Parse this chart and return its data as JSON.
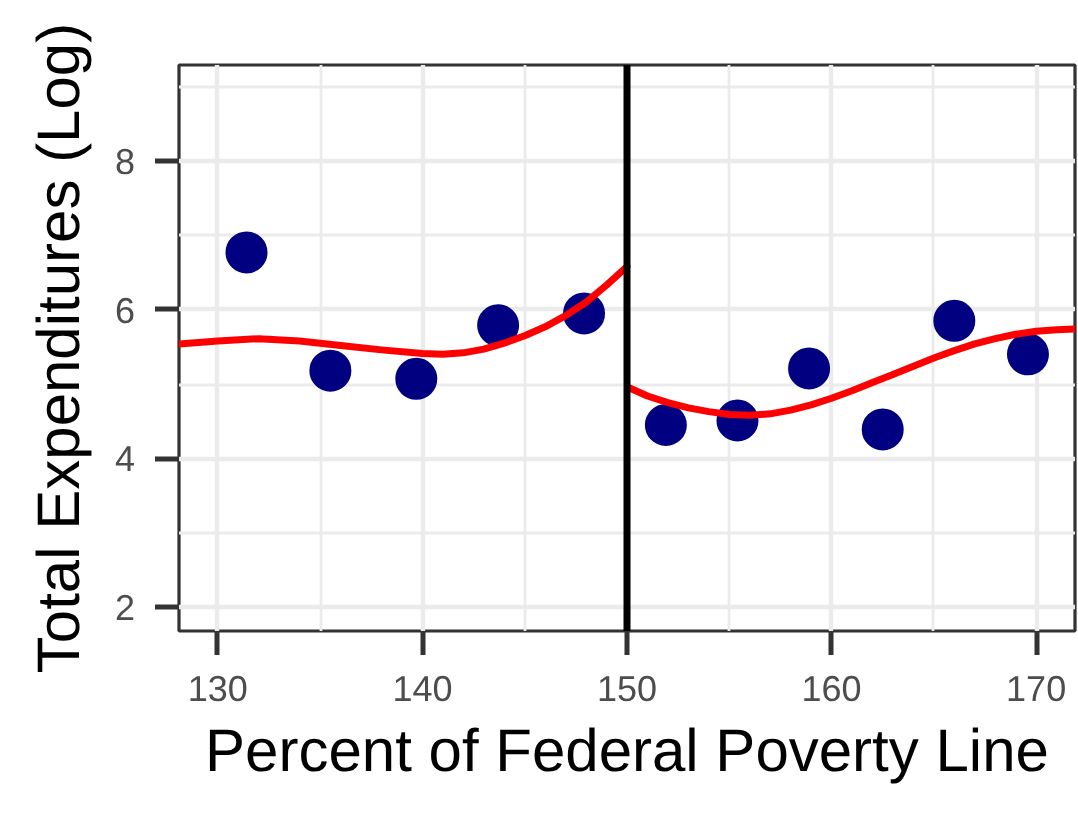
{
  "chart_data": {
    "type": "scatter",
    "xlabel": "Percent of Federal Poverty Line",
    "ylabel": "Total Expenditures (Log)",
    "xlim": [
      128.1,
      171.9
    ],
    "ylim": [
      1.68,
      9.29
    ],
    "xticks": [
      130,
      140,
      150,
      160,
      170
    ],
    "yticks": [
      2,
      4,
      6,
      8
    ],
    "grid": true,
    "series": [
      {
        "marker": "circle",
        "color": "#000080",
        "x": [
          131.4,
          135.5,
          139.7,
          143.7,
          147.9,
          151.9,
          155.4,
          158.9,
          162.5,
          166.0,
          169.6
        ],
        "values": [
          6.77,
          5.18,
          5.07,
          5.79,
          5.95,
          4.45,
          4.51,
          5.21,
          4.39,
          5.85,
          5.4
        ]
      },
      {
        "type": "line",
        "marker": "none",
        "line_style": "solid",
        "color": "#ff0000",
        "x": [
          128.1,
          130,
          132,
          134,
          136,
          138,
          140,
          141,
          142,
          143,
          144,
          145,
          146,
          147,
          148,
          149,
          150
        ],
        "values": [
          5.54,
          5.58,
          5.61,
          5.58,
          5.52,
          5.46,
          5.41,
          5.4,
          5.42,
          5.47,
          5.55,
          5.65,
          5.77,
          5.92,
          6.1,
          6.33,
          6.58
        ]
      },
      {
        "type": "line",
        "marker": "none",
        "line_style": "solid",
        "color": "#ff0000",
        "x": [
          150.1,
          151,
          152,
          153,
          154,
          155,
          156,
          157,
          158,
          159,
          160,
          161,
          162,
          163,
          164,
          165,
          166,
          167,
          168,
          169,
          170,
          171,
          171.9
        ],
        "values": [
          4.95,
          4.84,
          4.75,
          4.68,
          4.63,
          4.59,
          4.58,
          4.6,
          4.65,
          4.72,
          4.81,
          4.91,
          5.02,
          5.13,
          5.24,
          5.35,
          5.45,
          5.54,
          5.61,
          5.67,
          5.71,
          5.73,
          5.74
        ]
      }
    ],
    "ref_lines": [
      {
        "axis": "x",
        "value": 150,
        "color": "#000000"
      }
    ]
  }
}
